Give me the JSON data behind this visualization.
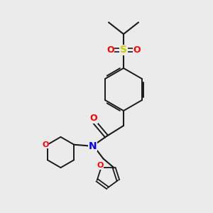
{
  "bg_color": "#ebebeb",
  "bond_color": "#1a1a1a",
  "N_color": "#0000ff",
  "O_color": "#ff0000",
  "S_color": "#cccc00",
  "figsize": [
    3.0,
    3.0
  ],
  "dpi": 100,
  "xlim": [
    0,
    10
  ],
  "ylim": [
    0,
    10
  ]
}
